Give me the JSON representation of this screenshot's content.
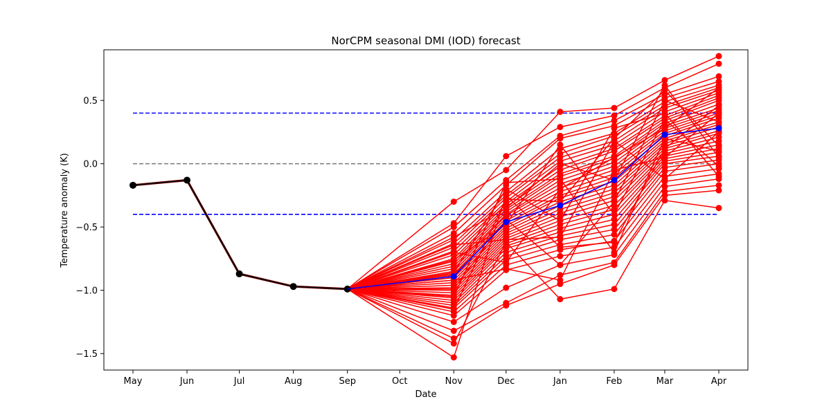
{
  "chart_data": {
    "type": "line",
    "title": "NorCPM seasonal DMI (IOD) forecast",
    "xlabel": "Date",
    "ylabel": "Temperature anomaly (K)",
    "categories": [
      "May",
      "Jun",
      "Jul",
      "Aug",
      "Sep",
      "Oct",
      "Nov",
      "Dec",
      "Jan",
      "Feb",
      "Mar",
      "Apr"
    ],
    "x_dates": [
      "2023-05",
      "2023-06",
      "2023-07",
      "2023-08",
      "2023-09",
      "2023-10",
      "2023-11",
      "2023-12",
      "2024-01",
      "2024-02",
      "2024-03",
      "2024-04"
    ],
    "ylim": [
      -1.63,
      0.9
    ],
    "yticks": [
      -1.5,
      -1.0,
      -0.5,
      0.0,
      0.5
    ],
    "ytick_labels": [
      "−1.5",
      "−1.0",
      "−0.5",
      "0.0",
      "0.5"
    ],
    "grid": false,
    "observed": {
      "color": "#000000",
      "x": [
        "2023-05-01",
        "2023-06-01",
        "2023-07-01",
        "2023-08-01",
        "2023-09-01"
      ],
      "values": [
        -0.17,
        -0.13,
        -0.87,
        -0.97,
        -0.99
      ]
    },
    "forecast_start": {
      "x": "2023-09-01",
      "value": -0.99
    },
    "ensemble": {
      "color": "#ff0000",
      "x": [
        "2023-11-01",
        "2023-12-01",
        "2024-01-01",
        "2024-02-01",
        "2024-03-01",
        "2024-04-01"
      ],
      "members": [
        [
          -0.3,
          -0.05,
          0.41,
          0.44,
          0.66,
          0.85
        ],
        [
          -0.47,
          0.06,
          0.29,
          0.38,
          0.6,
          0.79
        ],
        [
          -0.5,
          -0.13,
          0.22,
          0.34,
          0.55,
          0.69
        ],
        [
          -0.55,
          -0.17,
          0.2,
          0.3,
          0.52,
          0.65
        ],
        [
          -0.6,
          -0.22,
          0.12,
          0.24,
          0.49,
          0.62
        ],
        [
          -0.63,
          -0.25,
          0.08,
          0.22,
          0.46,
          0.6
        ],
        [
          -0.66,
          -0.27,
          0.05,
          0.18,
          0.44,
          0.58
        ],
        [
          -0.69,
          -0.3,
          0.02,
          0.15,
          0.41,
          0.56
        ],
        [
          -0.72,
          -0.32,
          -0.02,
          0.12,
          0.38,
          0.54
        ],
        [
          -0.75,
          -0.34,
          -0.05,
          0.1,
          0.36,
          0.52
        ],
        [
          -0.77,
          -0.36,
          -0.08,
          0.06,
          0.34,
          0.5
        ],
        [
          -0.79,
          -0.38,
          -0.1,
          0.04,
          0.32,
          0.47
        ],
        [
          -0.81,
          -0.4,
          -0.13,
          0.01,
          0.3,
          0.44
        ],
        [
          -0.83,
          -0.41,
          -0.16,
          -0.02,
          0.28,
          0.42
        ],
        [
          -0.85,
          -0.43,
          -0.19,
          -0.05,
          0.26,
          0.4
        ],
        [
          -0.87,
          -0.45,
          -0.22,
          -0.08,
          0.24,
          0.38
        ],
        [
          -0.88,
          -0.47,
          -0.25,
          -0.11,
          0.22,
          0.36
        ],
        [
          -0.9,
          -0.49,
          -0.27,
          -0.14,
          0.2,
          0.33
        ],
        [
          -0.92,
          -0.51,
          -0.3,
          -0.17,
          0.18,
          0.31
        ],
        [
          -0.94,
          -0.53,
          -0.33,
          -0.2,
          0.16,
          0.29
        ],
        [
          -0.96,
          -0.55,
          -0.36,
          -0.23,
          0.14,
          0.26
        ],
        [
          -0.98,
          -0.57,
          -0.39,
          -0.26,
          0.12,
          0.24
        ],
        [
          -1.0,
          -0.59,
          -0.42,
          -0.29,
          0.1,
          0.21
        ],
        [
          -1.02,
          -0.61,
          -0.45,
          -0.33,
          0.08,
          0.18
        ],
        [
          -1.04,
          -0.63,
          -0.48,
          -0.36,
          0.06,
          0.15
        ],
        [
          -1.06,
          -0.65,
          -0.51,
          -0.4,
          0.04,
          0.12
        ],
        [
          -1.08,
          -0.67,
          -0.54,
          -0.44,
          0.02,
          0.09
        ],
        [
          -1.1,
          -0.7,
          -0.57,
          -0.48,
          0.0,
          0.06
        ],
        [
          -1.12,
          -0.73,
          -0.6,
          -0.52,
          -0.03,
          0.03
        ],
        [
          -1.14,
          -0.76,
          -0.64,
          -0.56,
          -0.06,
          0.0
        ],
        [
          -1.17,
          -0.8,
          -0.68,
          -0.61,
          -0.1,
          -0.04
        ],
        [
          -1.2,
          -0.84,
          -0.73,
          -0.66,
          -0.14,
          -0.08
        ],
        [
          -1.25,
          -0.98,
          -0.8,
          -0.72,
          -0.18,
          -0.12
        ],
        [
          -1.32,
          -1.1,
          -0.88,
          -0.78,
          -0.22,
          -0.17
        ],
        [
          -1.38,
          -1.12,
          -0.95,
          -0.8,
          -0.25,
          -0.21
        ],
        [
          -1.42,
          -0.62,
          -1.07,
          -0.99,
          -0.29,
          -0.35
        ],
        [
          -1.53,
          -0.25,
          -0.66,
          -0.62,
          0.12,
          0.46
        ],
        [
          -0.58,
          -0.35,
          0.0,
          -0.13,
          0.62,
          0.05
        ],
        [
          -0.7,
          -0.78,
          -0.2,
          0.05,
          0.28,
          0.6
        ],
        [
          -0.86,
          -0.2,
          -0.45,
          0.28,
          0.4,
          -0.1
        ],
        [
          -0.99,
          -0.44,
          -0.8,
          -0.3,
          0.5,
          0.33
        ],
        [
          -1.05,
          -0.15,
          -0.12,
          -0.7,
          0.2,
          0.1
        ],
        [
          -0.64,
          -0.6,
          -0.58,
          0.18,
          -0.12,
          0.25
        ],
        [
          -0.76,
          -0.48,
          0.15,
          -0.4,
          0.35,
          -0.02
        ],
        [
          -0.92,
          -0.83,
          -0.92,
          -0.05,
          0.05,
          0.4
        ],
        [
          -1.15,
          -0.28,
          -0.3,
          0.2,
          0.58,
          0.14
        ]
      ]
    },
    "ensemble_mean": {
      "color": "#0000ff",
      "x": [
        "2023-11-01",
        "2023-12-01",
        "2024-01-01",
        "2024-02-01",
        "2024-03-01",
        "2024-04-01"
      ],
      "values": [
        -0.89,
        -0.46,
        -0.33,
        -0.13,
        0.23,
        0.28
      ]
    },
    "reference_lines": [
      {
        "y": 0.4,
        "color": "#0000ff",
        "style": "dashed"
      },
      {
        "y": -0.4,
        "color": "#0000ff",
        "style": "dashed"
      },
      {
        "y": 0.0,
        "color": "#808080",
        "style": "dashed"
      }
    ],
    "reference_x_range": [
      "2023-05-01",
      "2024-04-01"
    ]
  }
}
